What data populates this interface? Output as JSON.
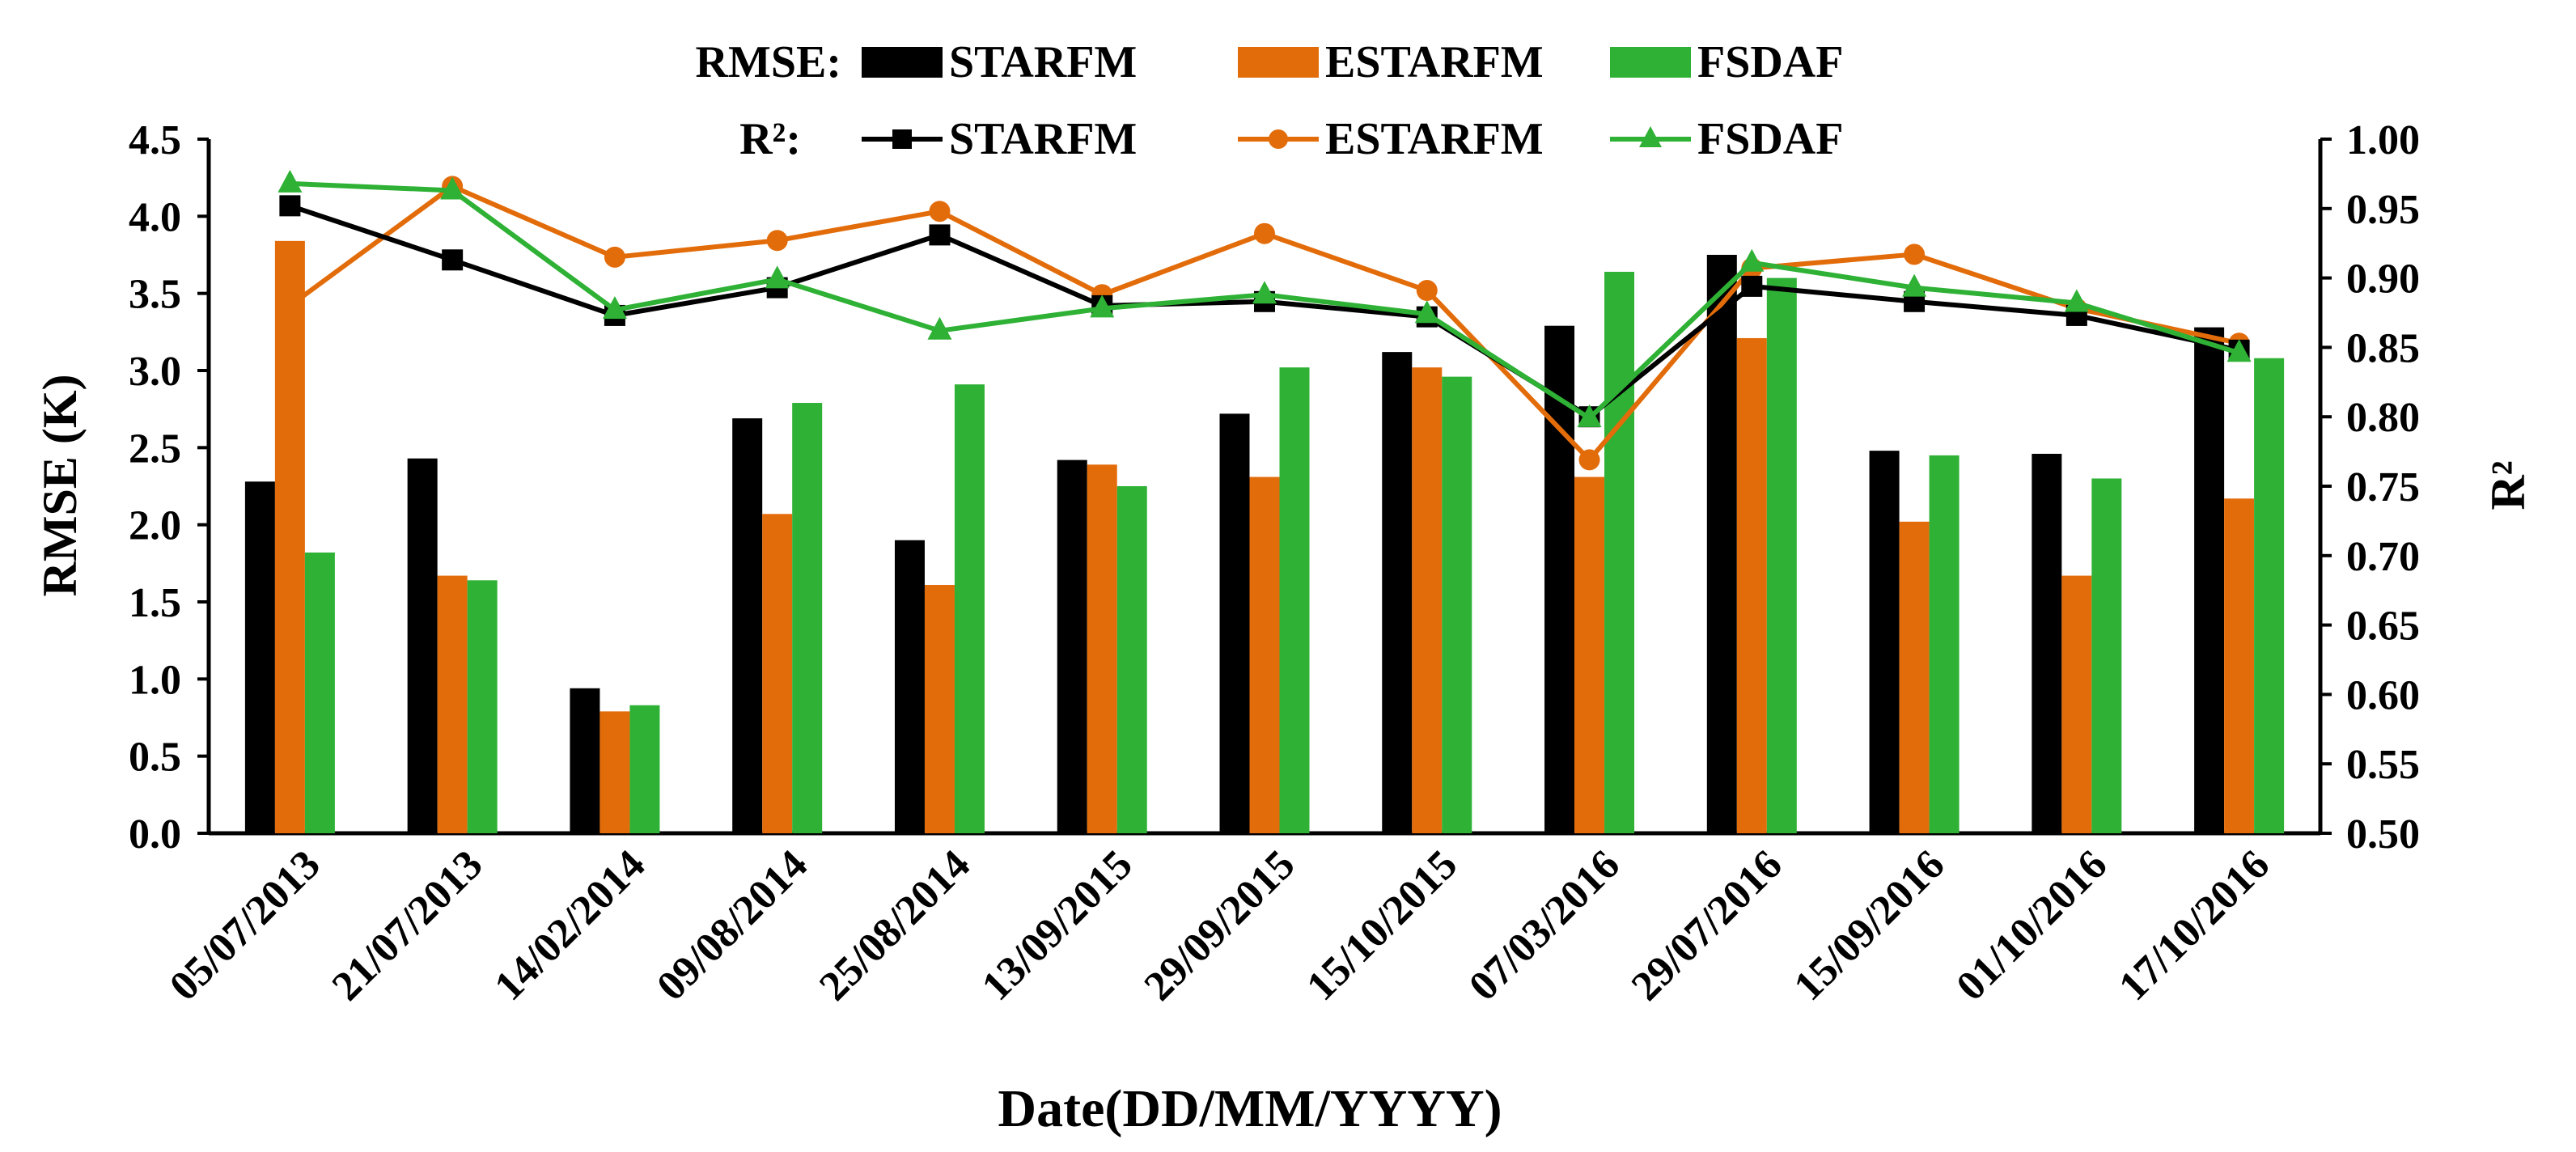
{
  "chart_data": {
    "type": "bar",
    "xlabel": "Date(DD/MM/YYYY)",
    "ylabel": "RMSE (K)",
    "y2label": "R²",
    "ylim": [
      0,
      4.5
    ],
    "y2lim": [
      0.5,
      1.0
    ],
    "yticks": [
      "0.0",
      "0.5",
      "1.0",
      "1.5",
      "2.0",
      "2.5",
      "3.0",
      "3.5",
      "4.0",
      "4.5"
    ],
    "y2ticks": [
      "0.50",
      "0.55",
      "0.60",
      "0.65",
      "0.70",
      "0.75",
      "0.80",
      "0.85",
      "0.90",
      "0.95",
      "1.00"
    ],
    "categories": [
      "05/07/2013",
      "21/07/2013",
      "14/02/2014",
      "09/08/2014",
      "25/08/2014",
      "13/09/2015",
      "29/09/2015",
      "15/10/2015",
      "07/03/2016",
      "29/07/2016",
      "15/09/2016",
      "01/10/2016",
      "17/10/2016"
    ],
    "legend": {
      "rmse_label": "RMSE:",
      "r2_label": "R²:",
      "position": "top"
    },
    "bar_series": [
      {
        "name": "STARFM",
        "color": "#000000",
        "values": [
          2.28,
          2.43,
          0.94,
          2.69,
          1.9,
          2.42,
          2.72,
          3.12,
          3.29,
          3.75,
          2.48,
          2.46,
          3.28
        ]
      },
      {
        "name": "ESTARFM",
        "color": "#E36C0A",
        "values": [
          3.84,
          1.67,
          0.79,
          2.07,
          1.61,
          2.39,
          2.31,
          3.02,
          2.31,
          3.21,
          2.02,
          1.67,
          2.17
        ]
      },
      {
        "name": "FSDAF",
        "color": "#2EB135",
        "values": [
          1.82,
          1.64,
          0.83,
          2.79,
          2.91,
          2.25,
          3.02,
          2.96,
          3.64,
          3.6,
          2.45,
          2.3,
          3.08
        ]
      }
    ],
    "line_series": [
      {
        "name": "STARFM",
        "color": "#000000",
        "marker": "square",
        "values": [
          0.952,
          0.913,
          0.873,
          0.893,
          0.931,
          0.88,
          0.883,
          0.872,
          0.8,
          0.894,
          0.883,
          0.873,
          0.848
        ]
      },
      {
        "name": "ESTARFM",
        "color": "#E36C0A",
        "marker": "circle",
        "values": [
          0.88,
          0.966,
          0.915,
          0.927,
          0.948,
          0.888,
          0.932,
          0.891,
          0.769,
          0.907,
          0.917,
          0.878,
          0.853
        ]
      },
      {
        "name": "FSDAF",
        "color": "#2EB135",
        "marker": "triangle",
        "values": [
          0.968,
          0.963,
          0.877,
          0.899,
          0.862,
          0.878,
          0.888,
          0.874,
          0.799,
          0.911,
          0.893,
          0.882,
          0.846
        ]
      }
    ]
  }
}
